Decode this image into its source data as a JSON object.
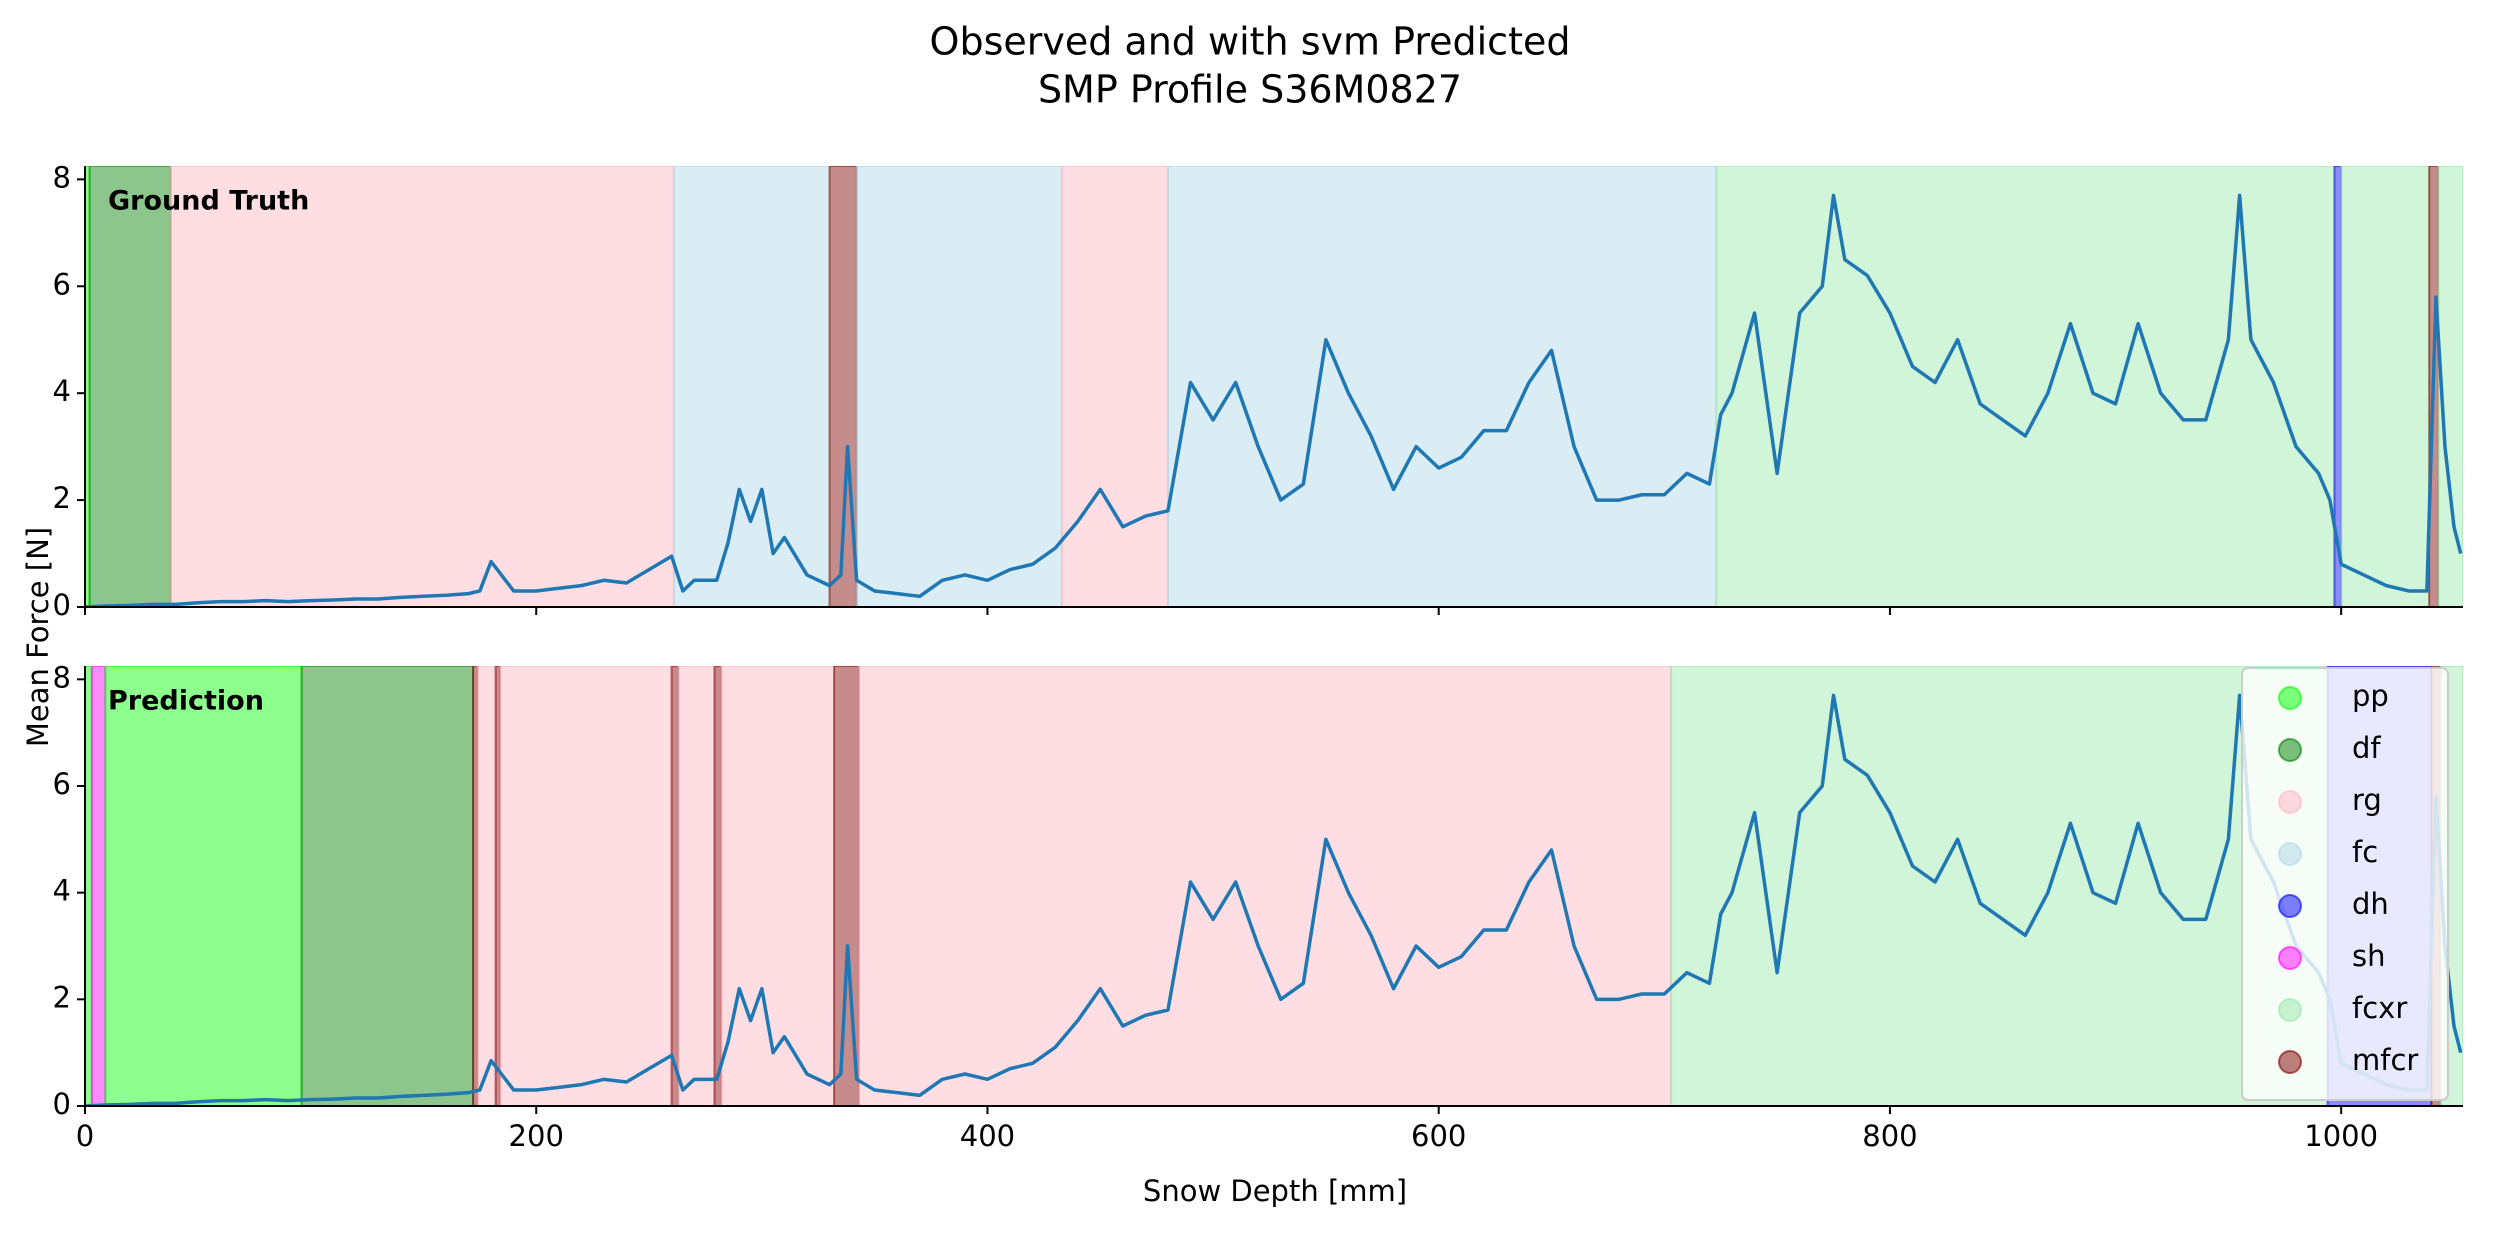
{
  "chart_data": {
    "type": "line",
    "title": "Observed and with svm Predicted",
    "subtitle": "SMP Profile S36M0827",
    "x_label": "Snow Depth [mm]",
    "y_label": "Mean Force [N]",
    "xlim": [
      0,
      1054
    ],
    "ylim": [
      0,
      8.25
    ],
    "xticks": [
      0,
      200,
      400,
      600,
      800,
      1000
    ],
    "yticks": [
      0,
      2,
      4,
      6,
      8
    ],
    "line_color": "#1f77b4",
    "classes": [
      {
        "name": "pp",
        "color": "#00ff00"
      },
      {
        "name": "df",
        "color": "#008000"
      },
      {
        "name": "rg",
        "color": "#ffb6c1"
      },
      {
        "name": "fc",
        "color": "#add8e6"
      },
      {
        "name": "dh",
        "color": "#0000ff"
      },
      {
        "name": "sh",
        "color": "#ff00ff"
      },
      {
        "name": "fcxr",
        "color": "#98e8a8"
      },
      {
        "name": "mfcr",
        "color": "#800000"
      }
    ],
    "legend": "upper right",
    "panels": [
      {
        "label": "Ground Truth",
        "bands": [
          {
            "start": 0,
            "end": 2,
            "class": 0
          },
          {
            "start": 2,
            "end": 38,
            "class": 1
          },
          {
            "start": 38,
            "end": 261,
            "class": 2
          },
          {
            "start": 261,
            "end": 330,
            "class": 3
          },
          {
            "start": 330,
            "end": 342,
            "class": 7
          },
          {
            "start": 342,
            "end": 433,
            "class": 3
          },
          {
            "start": 433,
            "end": 480,
            "class": 2
          },
          {
            "start": 480,
            "end": 723,
            "class": 3
          },
          {
            "start": 723,
            "end": 997,
            "class": 6
          },
          {
            "start": 997,
            "end": 1000,
            "class": 4
          },
          {
            "start": 1000,
            "end": 1039,
            "class": 6
          },
          {
            "start": 1039,
            "end": 1043,
            "class": 7
          },
          {
            "start": 1043,
            "end": 1054,
            "class": 6
          }
        ]
      },
      {
        "label": "Prediction",
        "bands": [
          {
            "start": 0,
            "end": 3,
            "class": 0
          },
          {
            "start": 3,
            "end": 9,
            "class": 5
          },
          {
            "start": 9,
            "end": 96,
            "class": 0
          },
          {
            "start": 96,
            "end": 172,
            "class": 1
          },
          {
            "start": 172,
            "end": 174,
            "class": 7
          },
          {
            "start": 174,
            "end": 182,
            "class": 2
          },
          {
            "start": 182,
            "end": 184,
            "class": 7
          },
          {
            "start": 184,
            "end": 260,
            "class": 2
          },
          {
            "start": 260,
            "end": 263,
            "class": 7
          },
          {
            "start": 263,
            "end": 279,
            "class": 2
          },
          {
            "start": 279,
            "end": 282,
            "class": 7
          },
          {
            "start": 282,
            "end": 332,
            "class": 2
          },
          {
            "start": 332,
            "end": 343,
            "class": 7
          },
          {
            "start": 343,
            "end": 703,
            "class": 2
          },
          {
            "start": 703,
            "end": 994,
            "class": 6
          },
          {
            "start": 994,
            "end": 1040,
            "class": 4
          },
          {
            "start": 1040,
            "end": 1044,
            "class": 7
          },
          {
            "start": 1044,
            "end": 1054,
            "class": 6
          }
        ]
      }
    ],
    "x": [
      0,
      10,
      20,
      30,
      40,
      50,
      60,
      70,
      80,
      90,
      100,
      110,
      120,
      130,
      140,
      150,
      160,
      170,
      175,
      180,
      190,
      200,
      210,
      220,
      230,
      240,
      250,
      260,
      265,
      270,
      280,
      285,
      290,
      295,
      300,
      305,
      310,
      320,
      330,
      335,
      338,
      342,
      350,
      360,
      370,
      380,
      390,
      400,
      410,
      420,
      430,
      440,
      450,
      460,
      470,
      480,
      485,
      490,
      500,
      510,
      520,
      530,
      540,
      550,
      560,
      570,
      580,
      590,
      600,
      610,
      620,
      630,
      640,
      650,
      660,
      670,
      680,
      690,
      700,
      710,
      720,
      725,
      730,
      740,
      750,
      760,
      770,
      775,
      780,
      790,
      800,
      810,
      820,
      830,
      840,
      850,
      860,
      870,
      880,
      890,
      900,
      910,
      920,
      930,
      940,
      950,
      955,
      960,
      970,
      980,
      990,
      995,
      1000,
      1010,
      1020,
      1030,
      1038,
      1042,
      1046,
      1050,
      1053
    ],
    "values": [
      0,
      0.02,
      0.03,
      0.05,
      0.05,
      0.08,
      0.1,
      0.1,
      0.12,
      0.1,
      0.12,
      0.13,
      0.15,
      0.15,
      0.18,
      0.2,
      0.22,
      0.25,
      0.3,
      0.85,
      0.3,
      0.3,
      0.35,
      0.4,
      0.5,
      0.45,
      0.7,
      0.95,
      0.3,
      0.5,
      0.5,
      1.2,
      2.2,
      1.6,
      2.2,
      1.0,
      1.3,
      0.6,
      0.4,
      0.6,
      3.0,
      0.5,
      0.3,
      0.25,
      0.2,
      0.5,
      0.6,
      0.5,
      0.7,
      0.8,
      1.1,
      1.6,
      2.2,
      1.5,
      1.7,
      1.8,
      3.0,
      4.2,
      3.5,
      4.2,
      3.0,
      2.0,
      2.3,
      5.0,
      4.0,
      3.2,
      2.2,
      3.0,
      2.6,
      2.8,
      3.3,
      3.3,
      4.2,
      4.8,
      3.0,
      2.0,
      2.0,
      2.1,
      2.1,
      2.5,
      2.3,
      3.6,
      4.0,
      5.5,
      2.5,
      5.5,
      6.0,
      7.7,
      6.5,
      6.2,
      5.5,
      4.5,
      4.2,
      5.0,
      3.8,
      3.5,
      3.2,
      4.0,
      5.3,
      4.0,
      3.8,
      5.3,
      4.0,
      3.5,
      3.5,
      5.0,
      7.7,
      5.0,
      4.2,
      3.0,
      2.5,
      2.0,
      0.8,
      0.6,
      0.4,
      0.3,
      0.3,
      5.8,
      3.0,
      1.5,
      1.0
    ]
  }
}
